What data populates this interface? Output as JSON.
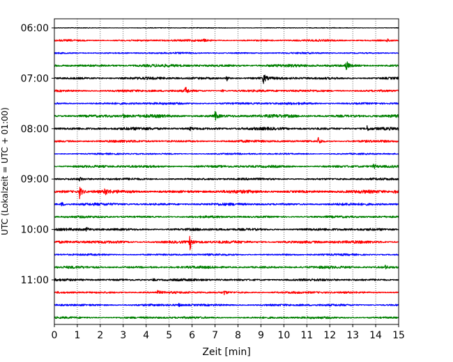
{
  "chart_data": {
    "type": "line",
    "xlabel": "Zeit  [min]",
    "ylabel": "UTC (Lokalzeit = UTC + 01:00)",
    "xlim": [
      0,
      15
    ],
    "x_ticks": [
      0,
      1,
      2,
      3,
      4,
      5,
      6,
      7,
      8,
      9,
      10,
      11,
      12,
      13,
      14,
      15
    ],
    "x_tick_labels": [
      "0",
      "1",
      "2",
      "3",
      "4",
      "5",
      "6",
      "7",
      "8",
      "9",
      "10",
      "11",
      "12",
      "13",
      "14",
      "15"
    ],
    "y_tick_labels": [
      "06:00",
      "07:00",
      "08:00",
      "09:00",
      "10:00",
      "11:00"
    ],
    "y_tick_trace_index": [
      0,
      4,
      8,
      12,
      16,
      20
    ],
    "grid": "x",
    "trace_colors": [
      "#000000",
      "#ff0000",
      "#0000ff",
      "#008000"
    ],
    "series": [
      {
        "start": "06:00",
        "color": "#000000",
        "noise": 0.05,
        "events": []
      },
      {
        "start": "06:15",
        "color": "#ff0000",
        "noise": 0.12,
        "events": [
          {
            "x": 6.5,
            "amp": 0.2
          },
          {
            "x": 14.5,
            "amp": 0.25
          }
        ]
      },
      {
        "start": "06:30",
        "color": "#0000ff",
        "noise": 0.1,
        "events": []
      },
      {
        "start": "06:45",
        "color": "#008000",
        "noise": 0.18,
        "events": [
          {
            "x": 12.7,
            "amp": 1.0
          }
        ]
      },
      {
        "start": "07:00",
        "color": "#000000",
        "noise": 0.16,
        "events": [
          {
            "x": 7.5,
            "amp": 0.5
          },
          {
            "x": 9.1,
            "amp": 0.85
          }
        ]
      },
      {
        "start": "07:15",
        "color": "#ff0000",
        "noise": 0.15,
        "events": [
          {
            "x": 5.7,
            "amp": 0.7
          },
          {
            "x": 7.3,
            "amp": 0.2
          }
        ]
      },
      {
        "start": "07:30",
        "color": "#0000ff",
        "noise": 0.14,
        "events": []
      },
      {
        "start": "07:45",
        "color": "#008000",
        "noise": 0.2,
        "events": [
          {
            "x": 3.0,
            "amp": 0.35
          },
          {
            "x": 7.0,
            "amp": 0.75
          }
        ]
      },
      {
        "start": "08:00",
        "color": "#000000",
        "noise": 0.18,
        "events": [
          {
            "x": 5.9,
            "amp": 0.3
          },
          {
            "x": 13.6,
            "amp": 0.5
          }
        ]
      },
      {
        "start": "08:15",
        "color": "#ff0000",
        "noise": 0.15,
        "events": [
          {
            "x": 11.5,
            "amp": 0.75
          }
        ]
      },
      {
        "start": "08:30",
        "color": "#0000ff",
        "noise": 0.1,
        "events": []
      },
      {
        "start": "08:45",
        "color": "#008000",
        "noise": 0.16,
        "events": [
          {
            "x": 13.9,
            "amp": 0.4
          }
        ]
      },
      {
        "start": "09:00",
        "color": "#000000",
        "noise": 0.14,
        "events": [
          {
            "x": 1.1,
            "amp": 0.3
          }
        ]
      },
      {
        "start": "09:15",
        "color": "#ff0000",
        "noise": 0.2,
        "events": [
          {
            "x": 1.1,
            "amp": 1.0
          },
          {
            "x": 2.2,
            "amp": 0.6
          },
          {
            "x": 14.8,
            "amp": 0.3
          }
        ]
      },
      {
        "start": "09:30",
        "color": "#0000ff",
        "noise": 0.16,
        "events": [
          {
            "x": 0.3,
            "amp": 0.35
          }
        ]
      },
      {
        "start": "09:45",
        "color": "#008000",
        "noise": 0.14,
        "events": []
      },
      {
        "start": "10:00",
        "color": "#000000",
        "noise": 0.16,
        "events": [
          {
            "x": 1.4,
            "amp": 0.3
          }
        ]
      },
      {
        "start": "10:15",
        "color": "#ff0000",
        "noise": 0.18,
        "events": [
          {
            "x": 5.9,
            "amp": 1.25
          }
        ]
      },
      {
        "start": "10:30",
        "color": "#0000ff",
        "noise": 0.12,
        "events": []
      },
      {
        "start": "10:45",
        "color": "#008000",
        "noise": 0.16,
        "events": [
          {
            "x": 14.4,
            "amp": 0.3
          }
        ]
      },
      {
        "start": "11:00",
        "color": "#000000",
        "noise": 0.15,
        "events": [
          {
            "x": 4.3,
            "amp": 0.2
          }
        ]
      },
      {
        "start": "11:15",
        "color": "#ff0000",
        "noise": 0.14,
        "events": [
          {
            "x": 4.5,
            "amp": 0.25
          },
          {
            "x": 7.4,
            "amp": 0.3
          }
        ]
      },
      {
        "start": "11:30",
        "color": "#0000ff",
        "noise": 0.14,
        "events": [
          {
            "x": 5.4,
            "amp": 0.25
          }
        ]
      },
      {
        "start": "11:45",
        "color": "#008000",
        "noise": 0.14,
        "events": []
      }
    ]
  }
}
